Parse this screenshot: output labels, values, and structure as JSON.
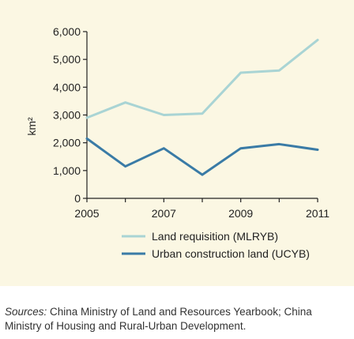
{
  "chart_data": {
    "type": "line",
    "title": "",
    "xlabel": "",
    "ylabel": "km²",
    "x": [
      2005,
      2006,
      2007,
      2008,
      2009,
      2010,
      2011
    ],
    "x_tick_labels": [
      "2005",
      "2007",
      "2009",
      "2011"
    ],
    "y_tick_labels": [
      "0",
      "1,000",
      "2,000",
      "3,000",
      "4,000",
      "5,000",
      "6,000"
    ],
    "xlim": [
      2005,
      2011
    ],
    "ylim": [
      0,
      6000
    ],
    "grid": false,
    "legend_position": "bottom",
    "series": [
      {
        "name": "Land requisition (MLRYB)",
        "color": "#a9d4d4",
        "values": [
          2900,
          3450,
          3000,
          3050,
          4520,
          4600,
          5700
        ]
      },
      {
        "name": "Urban construction land (UCYB)",
        "color": "#3a7ba6",
        "values": [
          2150,
          1150,
          1800,
          850,
          1800,
          1950,
          1750
        ]
      }
    ]
  },
  "source": {
    "label": "Sources:",
    "text": " China Ministry of Land and Resources Yearbook; China Ministry of Housing and Rural-Urban Development."
  }
}
